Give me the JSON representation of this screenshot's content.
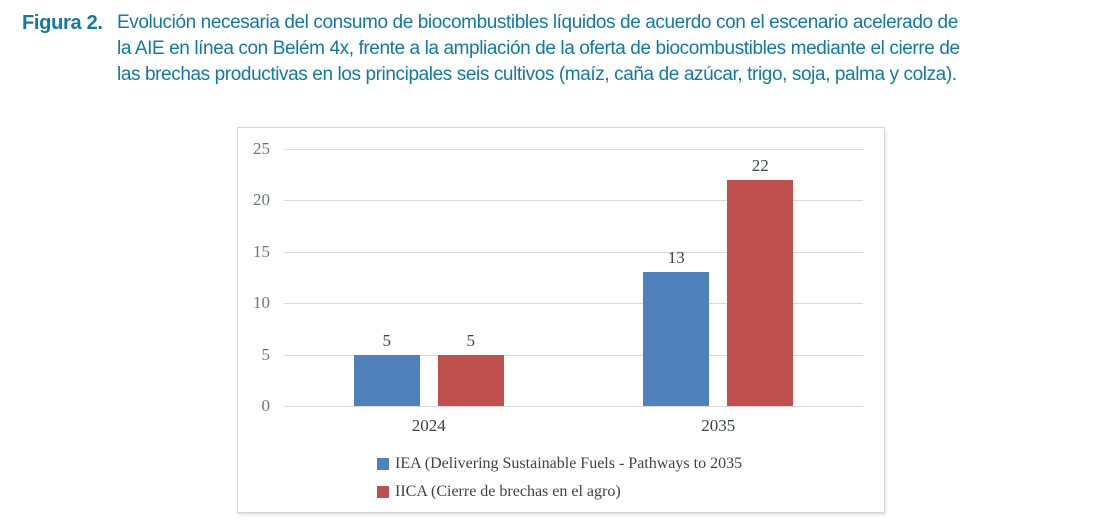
{
  "figure": {
    "label": "Figura 2.",
    "caption_lines": [
      "Evolución necesaria del consumo de biocombustibles líquidos de acuerdo con el escenario acelerado de",
      "la AIE en línea con Belém 4x, frente a la ampliación de la oferta de biocombustibles mediante el cierre de",
      "las brechas productivas en los principales seis cultivos (maíz, caña de azúcar, trigo, soja, palma y colza)."
    ]
  },
  "colors": {
    "caption_text": "#1179a6",
    "iea_blue": "#4f81bd",
    "iica_red": "#c0504d",
    "gridline": "#d9d9d9",
    "tick_text": "#70747a",
    "label_text": "#3f4245",
    "chart_border": "#d6d6d6"
  },
  "chart_data": {
    "type": "bar",
    "title": "",
    "xlabel": "",
    "ylabel": "",
    "categories": [
      "2024",
      "2035"
    ],
    "series": [
      {
        "name": "IEA (Delivering Sustainable Fuels - Pathways to 2035",
        "color": "#4f81bd",
        "values": [
          5,
          13
        ]
      },
      {
        "name": "IICA (Cierre de brechas en el agro)",
        "color": "#c0504d",
        "values": [
          5,
          22
        ]
      }
    ],
    "ylim": [
      0,
      25
    ],
    "yticks": [
      0,
      5,
      10,
      15,
      20,
      25
    ],
    "grid": "horizontal",
    "data_labels": true,
    "legend_position": "bottom-inside-left"
  }
}
